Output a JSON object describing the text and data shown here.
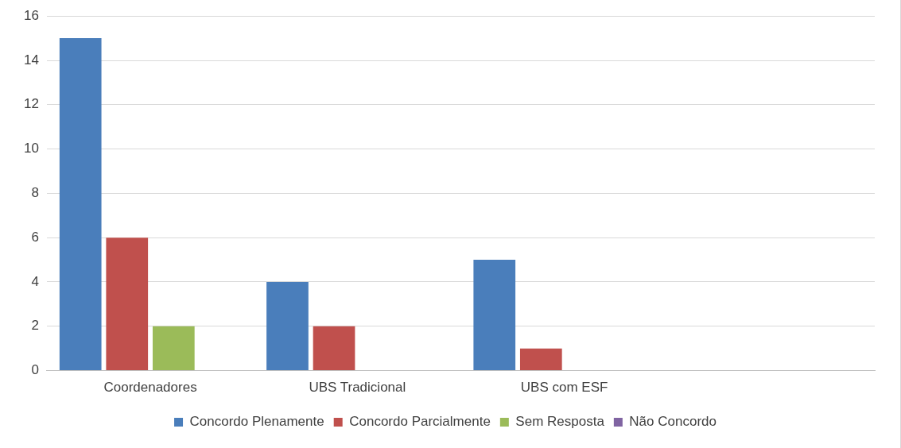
{
  "chart_data": {
    "type": "bar",
    "categories": [
      "Coordenadores",
      "UBS Tradicional",
      "UBS com ESF",
      null
    ],
    "series": [
      {
        "name": "Concordo Plenamente",
        "color": "#4a7ebb",
        "values": [
          15,
          4,
          5,
          null
        ]
      },
      {
        "name": "Concordo Parcialmente",
        "color": "#c0504d",
        "values": [
          6,
          2,
          1,
          null
        ]
      },
      {
        "name": "Sem Resposta",
        "color": "#9bbb59",
        "values": [
          2,
          0,
          0,
          null
        ]
      },
      {
        "name": "Não Concordo",
        "color": "#8064a2",
        "values": [
          0,
          0,
          0,
          null
        ]
      }
    ],
    "ylim": [
      0,
      16
    ],
    "yticks": [
      0,
      2,
      4,
      6,
      8,
      10,
      12,
      14,
      16
    ],
    "grid": "y",
    "legend": "bottom"
  }
}
